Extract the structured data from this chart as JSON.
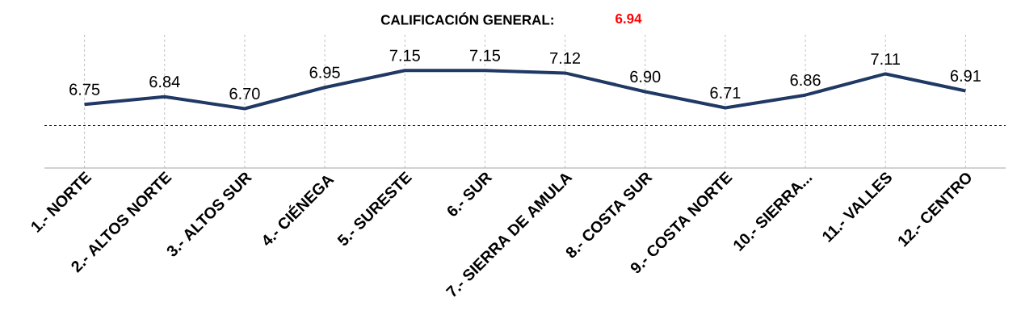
{
  "chart_data": {
    "type": "line",
    "title": "CALIFICACIÓN GENERAL:",
    "subtitle": "6.94",
    "categories": [
      "1.- NORTE",
      "2.- ALTOS NORTE",
      "3.- ALTOS SUR",
      "4.- CIÉNEGA",
      "5.- SURESTE",
      "6.- SUR",
      "7.- SIERRA DE AMULA",
      "8.- COSTA SUR",
      "9.- COSTA NORTE",
      "10.- SIERRA...",
      "11.- VALLES",
      "12.- CENTRO"
    ],
    "values": [
      6.75,
      6.84,
      6.7,
      6.95,
      7.15,
      7.15,
      7.12,
      6.9,
      6.71,
      6.86,
      7.11,
      6.91
    ],
    "value_labels": [
      "6.75",
      "6.84",
      "6.70",
      "6.95",
      "7.15",
      "7.15",
      "7.12",
      "6.90",
      "6.71",
      "6.86",
      "7.11",
      "6.91"
    ],
    "color": "#1f3864",
    "ylim": [
      6.0,
      7.6
    ],
    "tick_labels": "x",
    "grid": "x",
    "marker": "none",
    "line_style": "solid",
    "ref_lines": [
      {
        "axis": "y",
        "value": 6.5,
        "color": "#000000",
        "line_style": "dashed"
      }
    ]
  }
}
